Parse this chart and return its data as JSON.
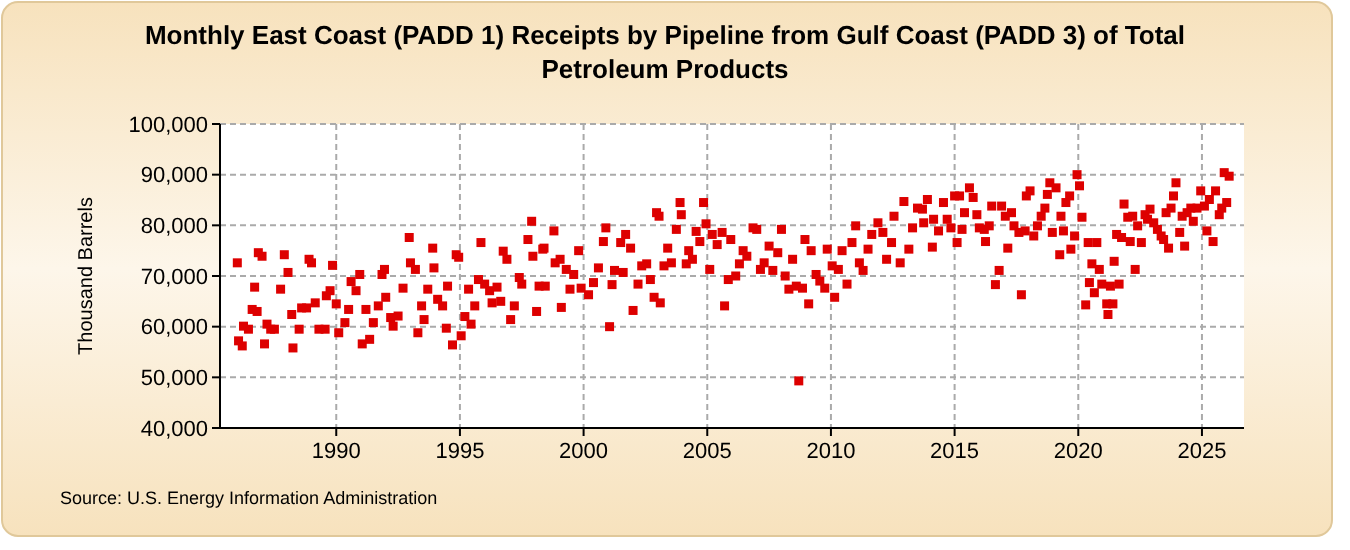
{
  "chart_data": {
    "type": "scatter",
    "title": "Monthly East Coast (PADD 1) Receipts by Pipeline from Gulf Coast (PADD 3) of Total Petroleum Products",
    "ylabel": "Thousand Barrels",
    "annotations": [
      "Source: U.S. Energy Information Administration"
    ],
    "marker": "square",
    "grid": true,
    "xlim": [
      1985.3,
      2026.7
    ],
    "xticks": [
      1990,
      1995,
      2000,
      2005,
      2010,
      2015,
      2020,
      2025
    ],
    "ylim": [
      40000,
      100000
    ],
    "yticks": [
      {
        "value": 40000,
        "label": "40,000"
      },
      {
        "value": 50000,
        "label": "50,000"
      },
      {
        "value": 60000,
        "label": "60,000"
      },
      {
        "value": 70000,
        "label": "70,000"
      },
      {
        "value": 80000,
        "label": "80,000"
      },
      {
        "value": 90000,
        "label": "90,000"
      },
      {
        "value": 100000,
        "label": "100,000"
      }
    ],
    "series": [
      {
        "color": "#dd0000",
        "x": [
          1986.0,
          1986.05,
          1986.2,
          1986.25,
          1986.45,
          1986.6,
          1986.7,
          1986.85,
          1987.0,
          1986.8,
          1987.1,
          1987.2,
          1987.35,
          1987.5,
          1987.75,
          1987.9,
          1988.05,
          1988.2,
          1988.25,
          1988.5,
          1988.6,
          1988.8,
          1988.9,
          1989.0,
          1989.15,
          1989.3,
          1989.55,
          1989.6,
          1989.75,
          1989.85,
          1990.0,
          1990.1,
          1990.35,
          1990.5,
          1990.6,
          1990.8,
          1990.95,
          1991.05,
          1991.2,
          1991.35,
          1991.5,
          1991.7,
          1991.85,
          1991.95,
          1992.0,
          1992.2,
          1992.3,
          1992.5,
          1992.7,
          1992.95,
          1993.0,
          1993.2,
          1993.3,
          1993.45,
          1993.55,
          1993.7,
          1993.9,
          1993.95,
          1994.1,
          1994.3,
          1994.45,
          1994.5,
          1994.7,
          1994.85,
          1994.95,
          1995.05,
          1995.2,
          1995.35,
          1995.45,
          1995.6,
          1995.75,
          1995.85,
          1996.0,
          1996.2,
          1996.3,
          1996.5,
          1996.65,
          1996.75,
          1996.9,
          1997.05,
          1997.2,
          1997.4,
          1997.5,
          1997.75,
          1997.9,
          1997.95,
          1998.1,
          1998.2,
          1998.35,
          1998.4,
          1998.45,
          1998.8,
          1998.85,
          1999.05,
          1999.1,
          1999.3,
          1999.45,
          1999.6,
          1999.8,
          1999.9,
          2000.2,
          2000.4,
          2000.6,
          2000.8,
          2000.9,
          2001.05,
          2001.15,
          2001.25,
          2001.5,
          2001.6,
          2001.7,
          2001.9,
          2002.0,
          2002.2,
          2002.35,
          2002.55,
          2002.7,
          2002.85,
          2002.95,
          2003.05,
          2003.1,
          2003.25,
          2003.4,
          2003.55,
          2003.75,
          2003.9,
          2003.95,
          2004.15,
          2004.25,
          2004.4,
          2004.55,
          2004.7,
          2004.85,
          2004.95,
          2005.1,
          2005.2,
          2005.4,
          2005.6,
          2005.7,
          2005.85,
          2005.95,
          2006.15,
          2006.3,
          2006.45,
          2006.6,
          2006.85,
          2007.0,
          2007.15,
          2007.3,
          2007.5,
          2007.65,
          2007.85,
          2008.0,
          2008.15,
          2008.3,
          2008.45,
          2008.6,
          2008.7,
          2008.85,
          2008.95,
          2009.1,
          2009.2,
          2009.4,
          2009.55,
          2009.75,
          2009.85,
          2010.05,
          2010.15,
          2010.3,
          2010.45,
          2010.65,
          2010.85,
          2011.0,
          2011.15,
          2011.3,
          2011.5,
          2011.65,
          2011.9,
          2012.1,
          2012.25,
          2012.45,
          2012.55,
          2012.8,
          2012.95,
          2013.15,
          2013.3,
          2013.5,
          2013.7,
          2013.75,
          2013.9,
          2014.15,
          2014.1,
          2014.35,
          2014.55,
          2014.7,
          2014.85,
          2015.0,
          2015.1,
          2015.2,
          2015.3,
          2015.4,
          2015.6,
          2015.75,
          2015.9,
          2016.0,
          2016.2,
          2016.25,
          2016.4,
          2016.5,
          2016.65,
          2016.8,
          2016.9,
          2017.05,
          2017.15,
          2017.3,
          2017.4,
          2017.6,
          2017.7,
          2017.85,
          2017.9,
          2018.05,
          2018.2,
          2018.35,
          2018.5,
          2018.65,
          2018.75,
          2018.85,
          2018.95,
          2019.1,
          2019.25,
          2019.3,
          2019.4,
          2019.5,
          2019.65,
          2019.7,
          2019.85,
          2019.95,
          2020.05,
          2020.15,
          2020.3,
          2020.4,
          2020.45,
          2020.55,
          2020.65,
          2020.75,
          2020.85,
          2020.95,
          2021.15,
          2021.2,
          2021.3,
          2021.4,
          2021.45,
          2021.55,
          2021.65,
          2021.75,
          2021.85,
          2022.0,
          2022.1,
          2022.2,
          2022.3,
          2022.4,
          2022.55,
          2022.7,
          2022.8,
          2022.9,
          2023.05,
          2023.2,
          2023.35,
          2023.45,
          2023.55,
          2023.65,
          2023.75,
          2023.85,
          2023.95,
          2024.1,
          2024.2,
          2024.3,
          2024.4,
          2024.55,
          2024.65,
          2024.8,
          2024.95,
          2025.1,
          2025.2,
          2025.3,
          2025.45,
          2025.55,
          2025.7,
          2025.8,
          2025.9,
          2026.0,
          2026.1
        ],
        "values": [
          72600,
          57200,
          56200,
          60100,
          59500,
          63400,
          67800,
          74600,
          73900,
          63000,
          56600,
          60500,
          59500,
          59500,
          67400,
          74200,
          70700,
          62400,
          55800,
          59500,
          63700,
          63700,
          73300,
          72600,
          64700,
          59500,
          59500,
          66100,
          67100,
          72100,
          64500,
          58800,
          60800,
          63400,
          68900,
          67100,
          70300,
          56600,
          63400,
          57500,
          60800,
          64100,
          70300,
          71300,
          65800,
          61800,
          60100,
          62100,
          67600,
          77600,
          72600,
          71300,
          58800,
          64100,
          61400,
          67400,
          75500,
          71600,
          65400,
          64100,
          59700,
          68000,
          56400,
          74200,
          73700,
          58200,
          62000,
          67400,
          60500,
          64100,
          69300,
          76600,
          68400,
          67100,
          64700,
          67800,
          65000,
          74900,
          73300,
          61400,
          64100,
          69700,
          68400,
          77200,
          80800,
          73900,
          63000,
          68000,
          75300,
          75500,
          68000,
          78900,
          72600,
          73300,
          63800,
          71300,
          67400,
          70300,
          75000,
          67600,
          66300,
          68700,
          71600,
          76800,
          79500,
          60000,
          68300,
          71100,
          76600,
          70700,
          78200,
          75500,
          63200,
          68400,
          72000,
          72400,
          69300,
          65800,
          82500,
          81800,
          64700,
          72000,
          75500,
          72600,
          79200,
          84500,
          82100,
          72400,
          75000,
          73300,
          78800,
          76800,
          84500,
          80300,
          71300,
          78200,
          76200,
          78600,
          64100,
          69300,
          77200,
          70000,
          72400,
          75000,
          73900,
          79500,
          79200,
          71300,
          72600,
          75900,
          71100,
          74600,
          79200,
          70000,
          67400,
          73300,
          68000,
          49300,
          67600,
          77200,
          64500,
          75000,
          70300,
          69000,
          67600,
          75300,
          72000,
          65800,
          71300,
          75000,
          68400,
          76600,
          79900,
          72600,
          71100,
          75300,
          78200,
          80500,
          78600,
          73300,
          76600,
          81800,
          72600,
          84700,
          75300,
          79500,
          83400,
          83200,
          80500,
          85100,
          81200,
          75700,
          78900,
          84500,
          81200,
          79500,
          85800,
          76600,
          85800,
          79200,
          82500,
          87400,
          85500,
          82100,
          79500,
          79200,
          76800,
          79900,
          83800,
          68300,
          71100,
          83800,
          81800,
          75500,
          82500,
          79900,
          78600,
          66300,
          78900,
          85800,
          86800,
          77900,
          79900,
          81800,
          83400,
          86100,
          88400,
          78600,
          87400,
          74200,
          81800,
          78900,
          84500,
          85800,
          75300,
          77900,
          90000,
          87800,
          81600,
          64300,
          76600,
          68700,
          72400,
          66700,
          76600,
          71300,
          68400,
          64500,
          62400,
          68000,
          64500,
          72900,
          78200,
          68400,
          77600,
          84200,
          81600,
          76800,
          81800,
          71300,
          79900,
          76600,
          82100,
          81200,
          83200,
          80500,
          79200,
          77900,
          77200,
          82500,
          75500,
          83400,
          85800,
          88400,
          78600,
          81800,
          75900,
          82500,
          83400,
          80800,
          83400,
          86800,
          83800,
          78900,
          85100,
          76800,
          86800,
          82100,
          83400,
          90400,
          84500,
          89700
        ]
      }
    ]
  }
}
